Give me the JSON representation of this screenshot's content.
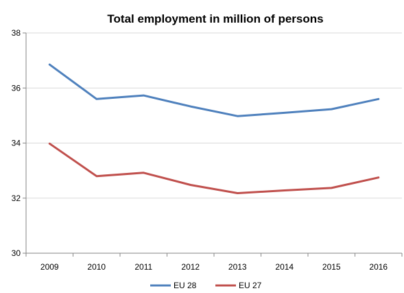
{
  "chart_data": {
    "type": "line",
    "title": "Total employment in million of persons",
    "xlabel": "",
    "ylabel": "",
    "categories": [
      "2009",
      "2010",
      "2011",
      "2012",
      "2013",
      "2014",
      "2015",
      "2016"
    ],
    "ylim": [
      30,
      38
    ],
    "yticks": [
      30,
      32,
      34,
      36,
      38
    ],
    "grid": true,
    "legend": "bottom",
    "series": [
      {
        "name": "EU 28",
        "color": "#4f81bd",
        "values": [
          36.85,
          35.6,
          35.73,
          35.33,
          34.98,
          35.1,
          35.23,
          35.6
        ]
      },
      {
        "name": "EU 27",
        "color": "#c0504d",
        "values": [
          33.98,
          32.8,
          32.92,
          32.48,
          32.18,
          32.28,
          32.37,
          32.75
        ]
      }
    ]
  }
}
